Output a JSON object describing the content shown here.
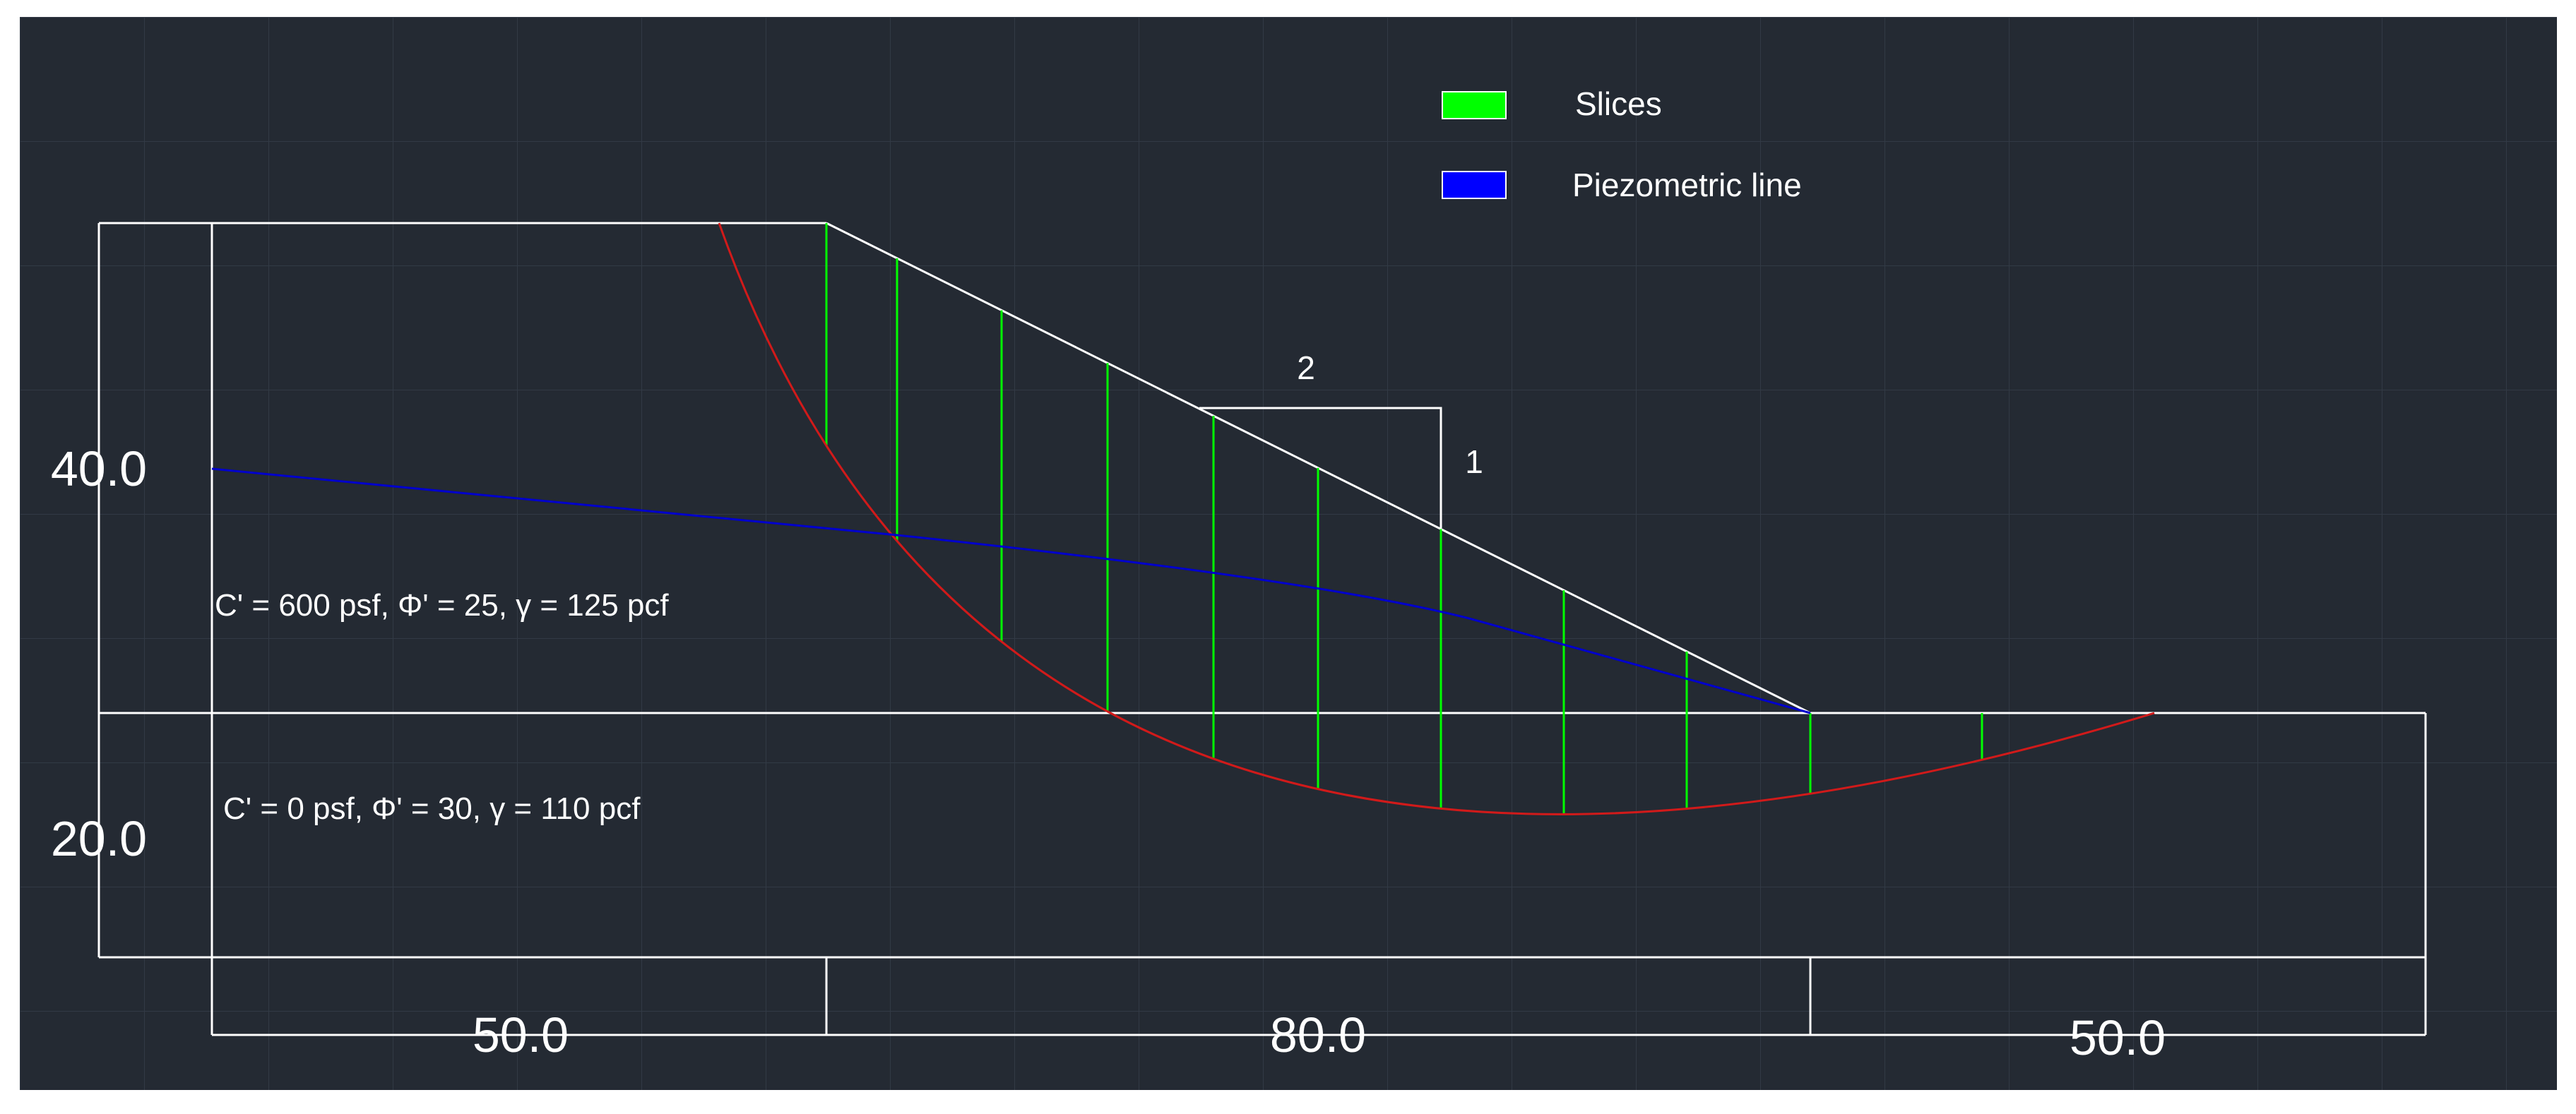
{
  "colors": {
    "background": "#242a33",
    "grid": "#323a45",
    "outline": "#ffffff",
    "slice": "#00ff00",
    "failure_surface": "#d11a1a",
    "piezometric": "#0000cc"
  },
  "legend": {
    "slices": {
      "label": "Slices",
      "color": "#00ff00"
    },
    "piezometric": {
      "label": "Piezometric line",
      "color": "#0000ff"
    }
  },
  "slope_ratio": {
    "horizontal": "2",
    "vertical": "1"
  },
  "layers": {
    "upper": "C' = 600 psf, Φ' = 25, γ = 125 pcf",
    "lower": "C' = 0 psf, Φ' = 30, γ = 110 pcf"
  },
  "dimensions": {
    "upper_height": "40.0",
    "lower_height": "20.0",
    "left_width": "50.0",
    "slope_width": "80.0",
    "right_width": "50.0"
  },
  "icons": {
    "failure_surface": "circular-slip-arc"
  }
}
